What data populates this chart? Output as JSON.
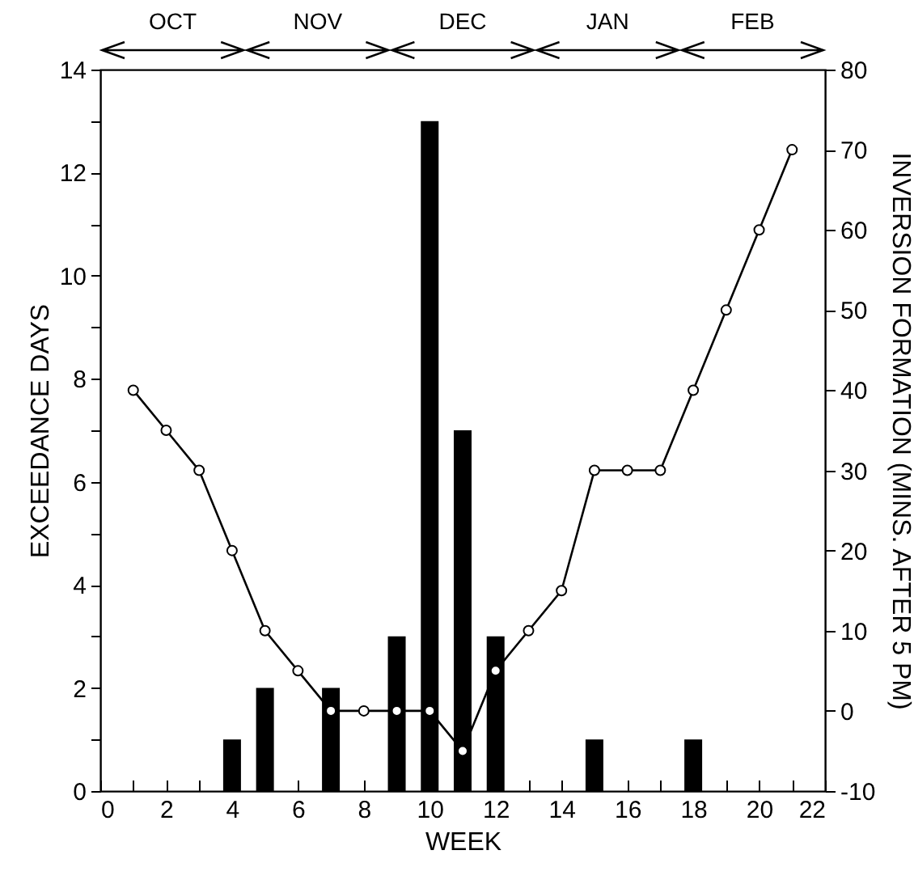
{
  "chart_data": {
    "type": "bar",
    "xlabel": "WEEK",
    "ylabel": "EXCEEDANCE DAYS",
    "y2label": "INVERSION FORMATION (MINS. AFTER 5 PM)",
    "annotations": [
      "OCT",
      "NOV",
      "DEC",
      "JAN",
      "FEB"
    ],
    "marker": "circle",
    "xlim": [
      0,
      22
    ],
    "xticks": [
      0,
      {
        "value": 1,
        "label": null
      },
      2,
      {
        "value": 3,
        "label": null
      },
      4,
      {
        "value": 5,
        "label": null
      },
      6,
      {
        "value": 7,
        "label": null
      },
      8,
      {
        "value": 9,
        "label": null
      },
      10,
      {
        "value": 11,
        "label": null
      },
      12,
      {
        "value": 13,
        "label": null
      },
      14,
      {
        "value": 15,
        "label": null
      },
      16,
      {
        "value": 17,
        "label": null
      },
      18,
      {
        "value": 19,
        "label": null
      },
      20,
      {
        "value": 21,
        "label": null
      },
      22
    ],
    "ylim": [
      0,
      14
    ],
    "yticks": [
      0,
      {
        "value": 1,
        "label": null
      },
      2,
      {
        "value": 3,
        "label": null
      },
      4,
      {
        "value": 5,
        "label": null
      },
      6,
      {
        "value": 7,
        "label": null
      },
      8,
      {
        "value": 9,
        "label": null
      },
      10,
      {
        "value": 11,
        "label": null
      },
      12,
      {
        "value": 13,
        "label": null
      },
      14
    ],
    "y2lim": [
      -10,
      80
    ],
    "y2ticks": [
      -10,
      0,
      10,
      20,
      30,
      40,
      50,
      60,
      70,
      80
    ],
    "series": [
      {
        "color": "#000000",
        "x": [
          4,
          5,
          7,
          9,
          10,
          11,
          12,
          15,
          18
        ],
        "values": [
          1,
          2,
          2,
          3,
          13,
          7,
          3,
          1,
          1
        ]
      },
      {
        "type": "line",
        "axis": "y2",
        "color": "#000000",
        "x": [
          1,
          2,
          3,
          4,
          5,
          6,
          7,
          8,
          9,
          10,
          11,
          12,
          13,
          14,
          15,
          16,
          17,
          18,
          19,
          20,
          21
        ],
        "values": [
          40,
          35,
          30,
          20,
          10,
          5,
          0,
          0,
          0,
          0,
          -5,
          5,
          10,
          15,
          30,
          30,
          30,
          40,
          50,
          60,
          70
        ]
      }
    ]
  }
}
